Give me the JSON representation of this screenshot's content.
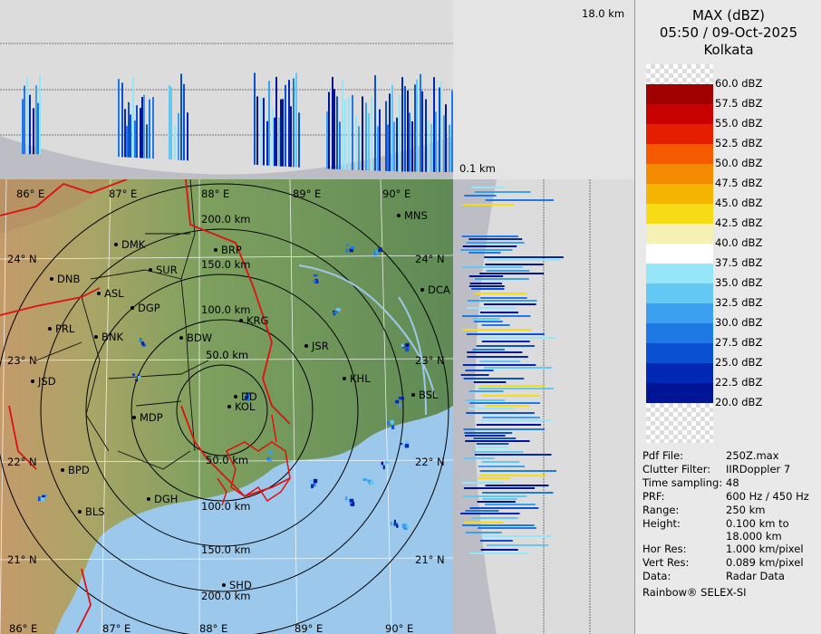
{
  "header": {
    "product": "MAX (dBZ)",
    "datetime": "05:50 / 09-Oct-2025",
    "station": "Kolkata"
  },
  "height_axis": {
    "top_label": "18.0 km",
    "bottom_label": "0.1 km"
  },
  "scale": {
    "levels": [
      {
        "label": "60.0 dBZ",
        "color": ""
      },
      {
        "label": "57.5 dBZ",
        "color": "#a00000"
      },
      {
        "label": "55.0 dBZ",
        "color": "#c80000"
      },
      {
        "label": "52.5 dBZ",
        "color": "#e61e00"
      },
      {
        "label": "50.0 dBZ",
        "color": "#f55a00"
      },
      {
        "label": "47.5 dBZ",
        "color": "#f58c00"
      },
      {
        "label": "45.0 dBZ",
        "color": "#f5b400"
      },
      {
        "label": "42.5 dBZ",
        "color": "#f5dc14"
      },
      {
        "label": "40.0 dBZ",
        "color": "#f5f0b4"
      },
      {
        "label": "37.5 dBZ",
        "color": "#ffffff"
      },
      {
        "label": "35.0 dBZ",
        "color": "#96e6fa"
      },
      {
        "label": "32.5 dBZ",
        "color": "#64c8f5"
      },
      {
        "label": "30.0 dBZ",
        "color": "#3ca0f0"
      },
      {
        "label": "27.5 dBZ",
        "color": "#1e78e6"
      },
      {
        "label": "25.0 dBZ",
        "color": "#0a50d2"
      },
      {
        "label": "22.5 dBZ",
        "color": "#0028b4"
      },
      {
        "label": "20.0 dBZ",
        "color": "#001496"
      }
    ]
  },
  "info": [
    {
      "key": "Pdf File:",
      "value": "250Z.max"
    },
    {
      "key": "Clutter Filter:",
      "value": "IIRDoppler 7"
    },
    {
      "key": "Time sampling:",
      "value": "48"
    },
    {
      "key": "PRF:",
      "value": "600 Hz / 450 Hz"
    },
    {
      "key": "Range:",
      "value": "250 km"
    },
    {
      "key": "Height:",
      "value": "0.100 km to"
    },
    {
      "key": "",
      "value": "18.000 km"
    },
    {
      "key": "Hor Res:",
      "value": "1.000 km/pixel"
    },
    {
      "key": "Vert Res:",
      "value": "0.089 km/pixel"
    },
    {
      "key": "Data:",
      "value": "Radar Data"
    }
  ],
  "footer": "Rainbow® SELEX-SI",
  "map": {
    "lon_labels": [
      "86° E",
      "87° E",
      "88° E",
      "89° E",
      "90° E"
    ],
    "lat_labels": [
      "24° N",
      "23° N",
      "22° N",
      "21° N"
    ],
    "range_rings": [
      "50.0 km",
      "100.0 km",
      "150.0 km",
      "200.0 km"
    ],
    "stations": [
      {
        "name": "MNS"
      },
      {
        "name": "DMK"
      },
      {
        "name": "BRP"
      },
      {
        "name": "SUR"
      },
      {
        "name": "DNB"
      },
      {
        "name": "ASL"
      },
      {
        "name": "DGP"
      },
      {
        "name": "DCA"
      },
      {
        "name": "KRG"
      },
      {
        "name": "PRL"
      },
      {
        "name": "BNK"
      },
      {
        "name": "BDW"
      },
      {
        "name": "JSR"
      },
      {
        "name": "JSD"
      },
      {
        "name": "KHL"
      },
      {
        "name": "BSL"
      },
      {
        "name": "DD"
      },
      {
        "name": "KOL"
      },
      {
        "name": "MDP"
      },
      {
        "name": "BPD"
      },
      {
        "name": "DGH"
      },
      {
        "name": "BLS"
      },
      {
        "name": "SHD"
      }
    ]
  }
}
